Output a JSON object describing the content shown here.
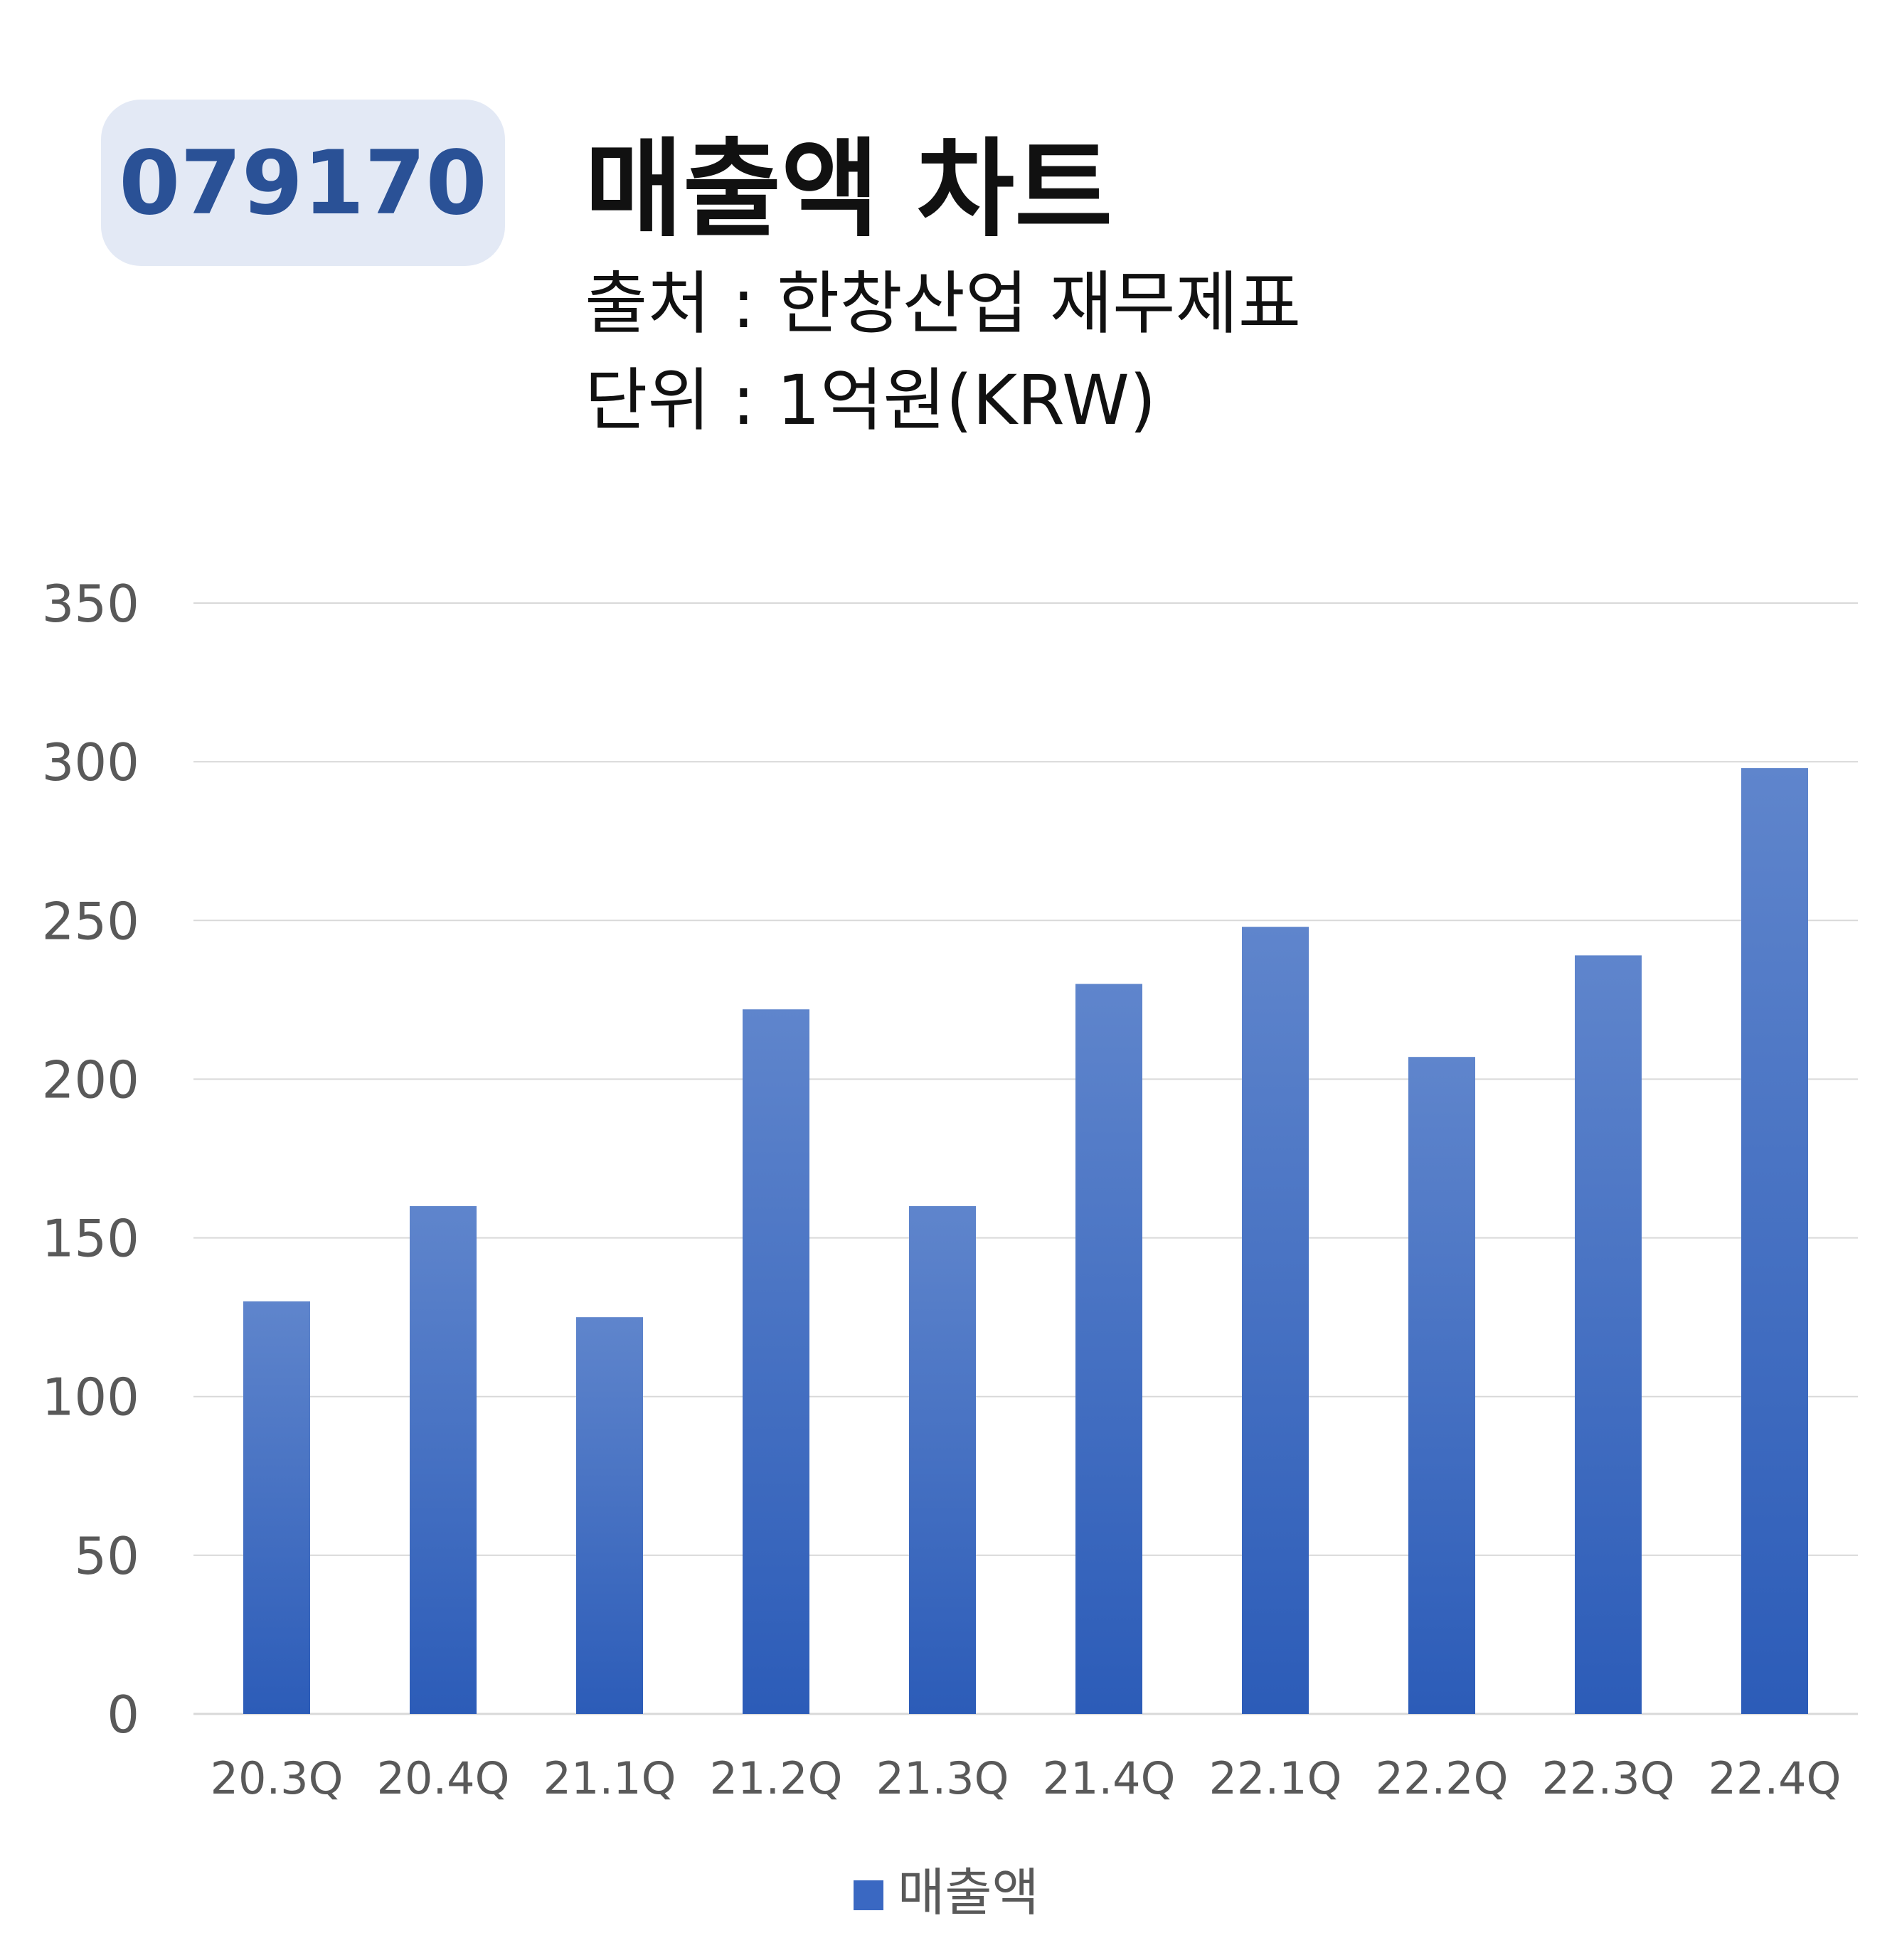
{
  "header": {
    "code": "079170",
    "title": "매출액 차트",
    "source": "출처 : 한창산업 재무제표",
    "unit": "단위 : 1억원(KRW)"
  },
  "colors": {
    "badge_bg": "#e3e9f5",
    "badge_text": "#2a5196",
    "bar_top": "#5f85cc",
    "bar_bottom": "#2c5cb8",
    "grid": "#d9d9d9",
    "tick_text": "#595959",
    "title_text": "#111111"
  },
  "chart_data": {
    "type": "bar",
    "categories": [
      "20.3Q",
      "20.4Q",
      "21.1Q",
      "21.2Q",
      "21.3Q",
      "21.4Q",
      "22.1Q",
      "22.2Q",
      "22.3Q",
      "22.4Q"
    ],
    "series": [
      {
        "name": "매출액",
        "values": [
          130,
          160,
          125,
          222,
          160,
          230,
          248,
          207,
          239,
          298
        ]
      }
    ],
    "ylim": [
      0,
      350
    ],
    "yticks": [
      "0",
      "50",
      "100",
      "150",
      "200",
      "250",
      "300",
      "350"
    ],
    "grid": true,
    "legend": "bottom-center"
  }
}
